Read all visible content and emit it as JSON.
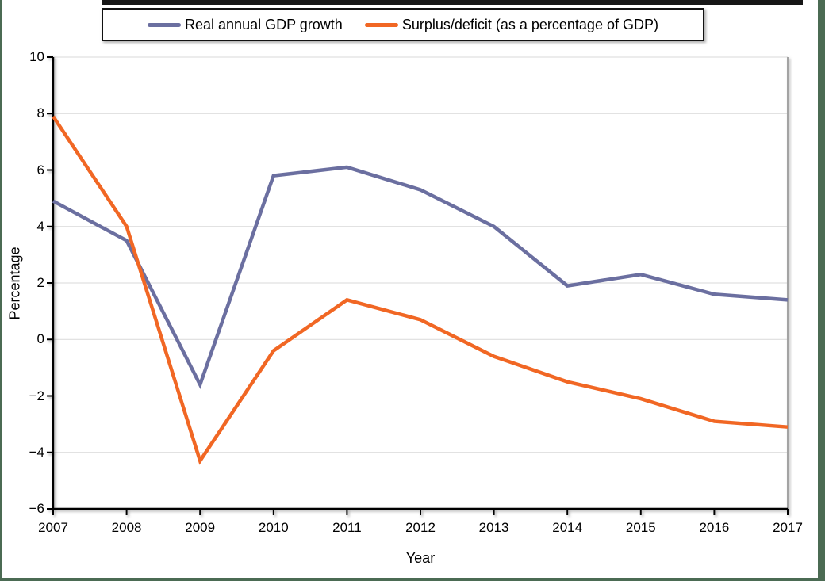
{
  "frame": {
    "page_background": "#ffffff",
    "edge_color": "#4b6b53",
    "top_rule_color": "#161616"
  },
  "legend": {
    "items": [
      {
        "label": "Real annual GDP growth",
        "color": "#6b6fa0"
      },
      {
        "label": "Surplus/deficit (as a percentage of GDP)",
        "color": "#f16724"
      }
    ]
  },
  "axes": {
    "xlabel": "Year",
    "ylabel": "Percentage",
    "y_ticks": [
      {
        "label": "10",
        "value": 10
      },
      {
        "label": "8",
        "value": 8
      },
      {
        "label": "6",
        "value": 6
      },
      {
        "label": "4",
        "value": 4
      },
      {
        "label": "2",
        "value": 2
      },
      {
        "label": "0",
        "value": 0
      },
      {
        "label": "−2",
        "value": -2
      },
      {
        "label": "−4",
        "value": -4
      },
      {
        "label": "−6",
        "value": -6
      }
    ],
    "x_ticks": [
      "2007",
      "2008",
      "2009",
      "2010",
      "2011",
      "2012",
      "2013",
      "2014",
      "2015",
      "2016",
      "2017"
    ]
  },
  "chart_data": {
    "type": "line",
    "x": [
      2007,
      2008,
      2009,
      2010,
      2011,
      2012,
      2013,
      2014,
      2015,
      2016,
      2017
    ],
    "series": [
      {
        "name": "Real annual GDP growth",
        "color": "#6b6fa0",
        "values": [
          4.9,
          3.5,
          -1.6,
          5.8,
          6.1,
          5.3,
          4.0,
          1.9,
          2.3,
          1.6,
          1.4
        ]
      },
      {
        "name": "Surplus/deficit (as a percentage of GDP)",
        "color": "#f16724",
        "values": [
          7.9,
          4.0,
          -4.3,
          -0.4,
          1.4,
          0.7,
          -0.6,
          -1.5,
          -2.1,
          -2.9,
          -3.1
        ]
      }
    ],
    "xlabel": "Year",
    "ylabel": "Percentage",
    "ylim": [
      -6,
      10
    ],
    "ytick_step": 2,
    "grid": true,
    "gridline_color": "#d9d9d9",
    "axis_color": "#000000",
    "plot_right_border_color": "#a3a3a3",
    "legend_position": "top"
  }
}
